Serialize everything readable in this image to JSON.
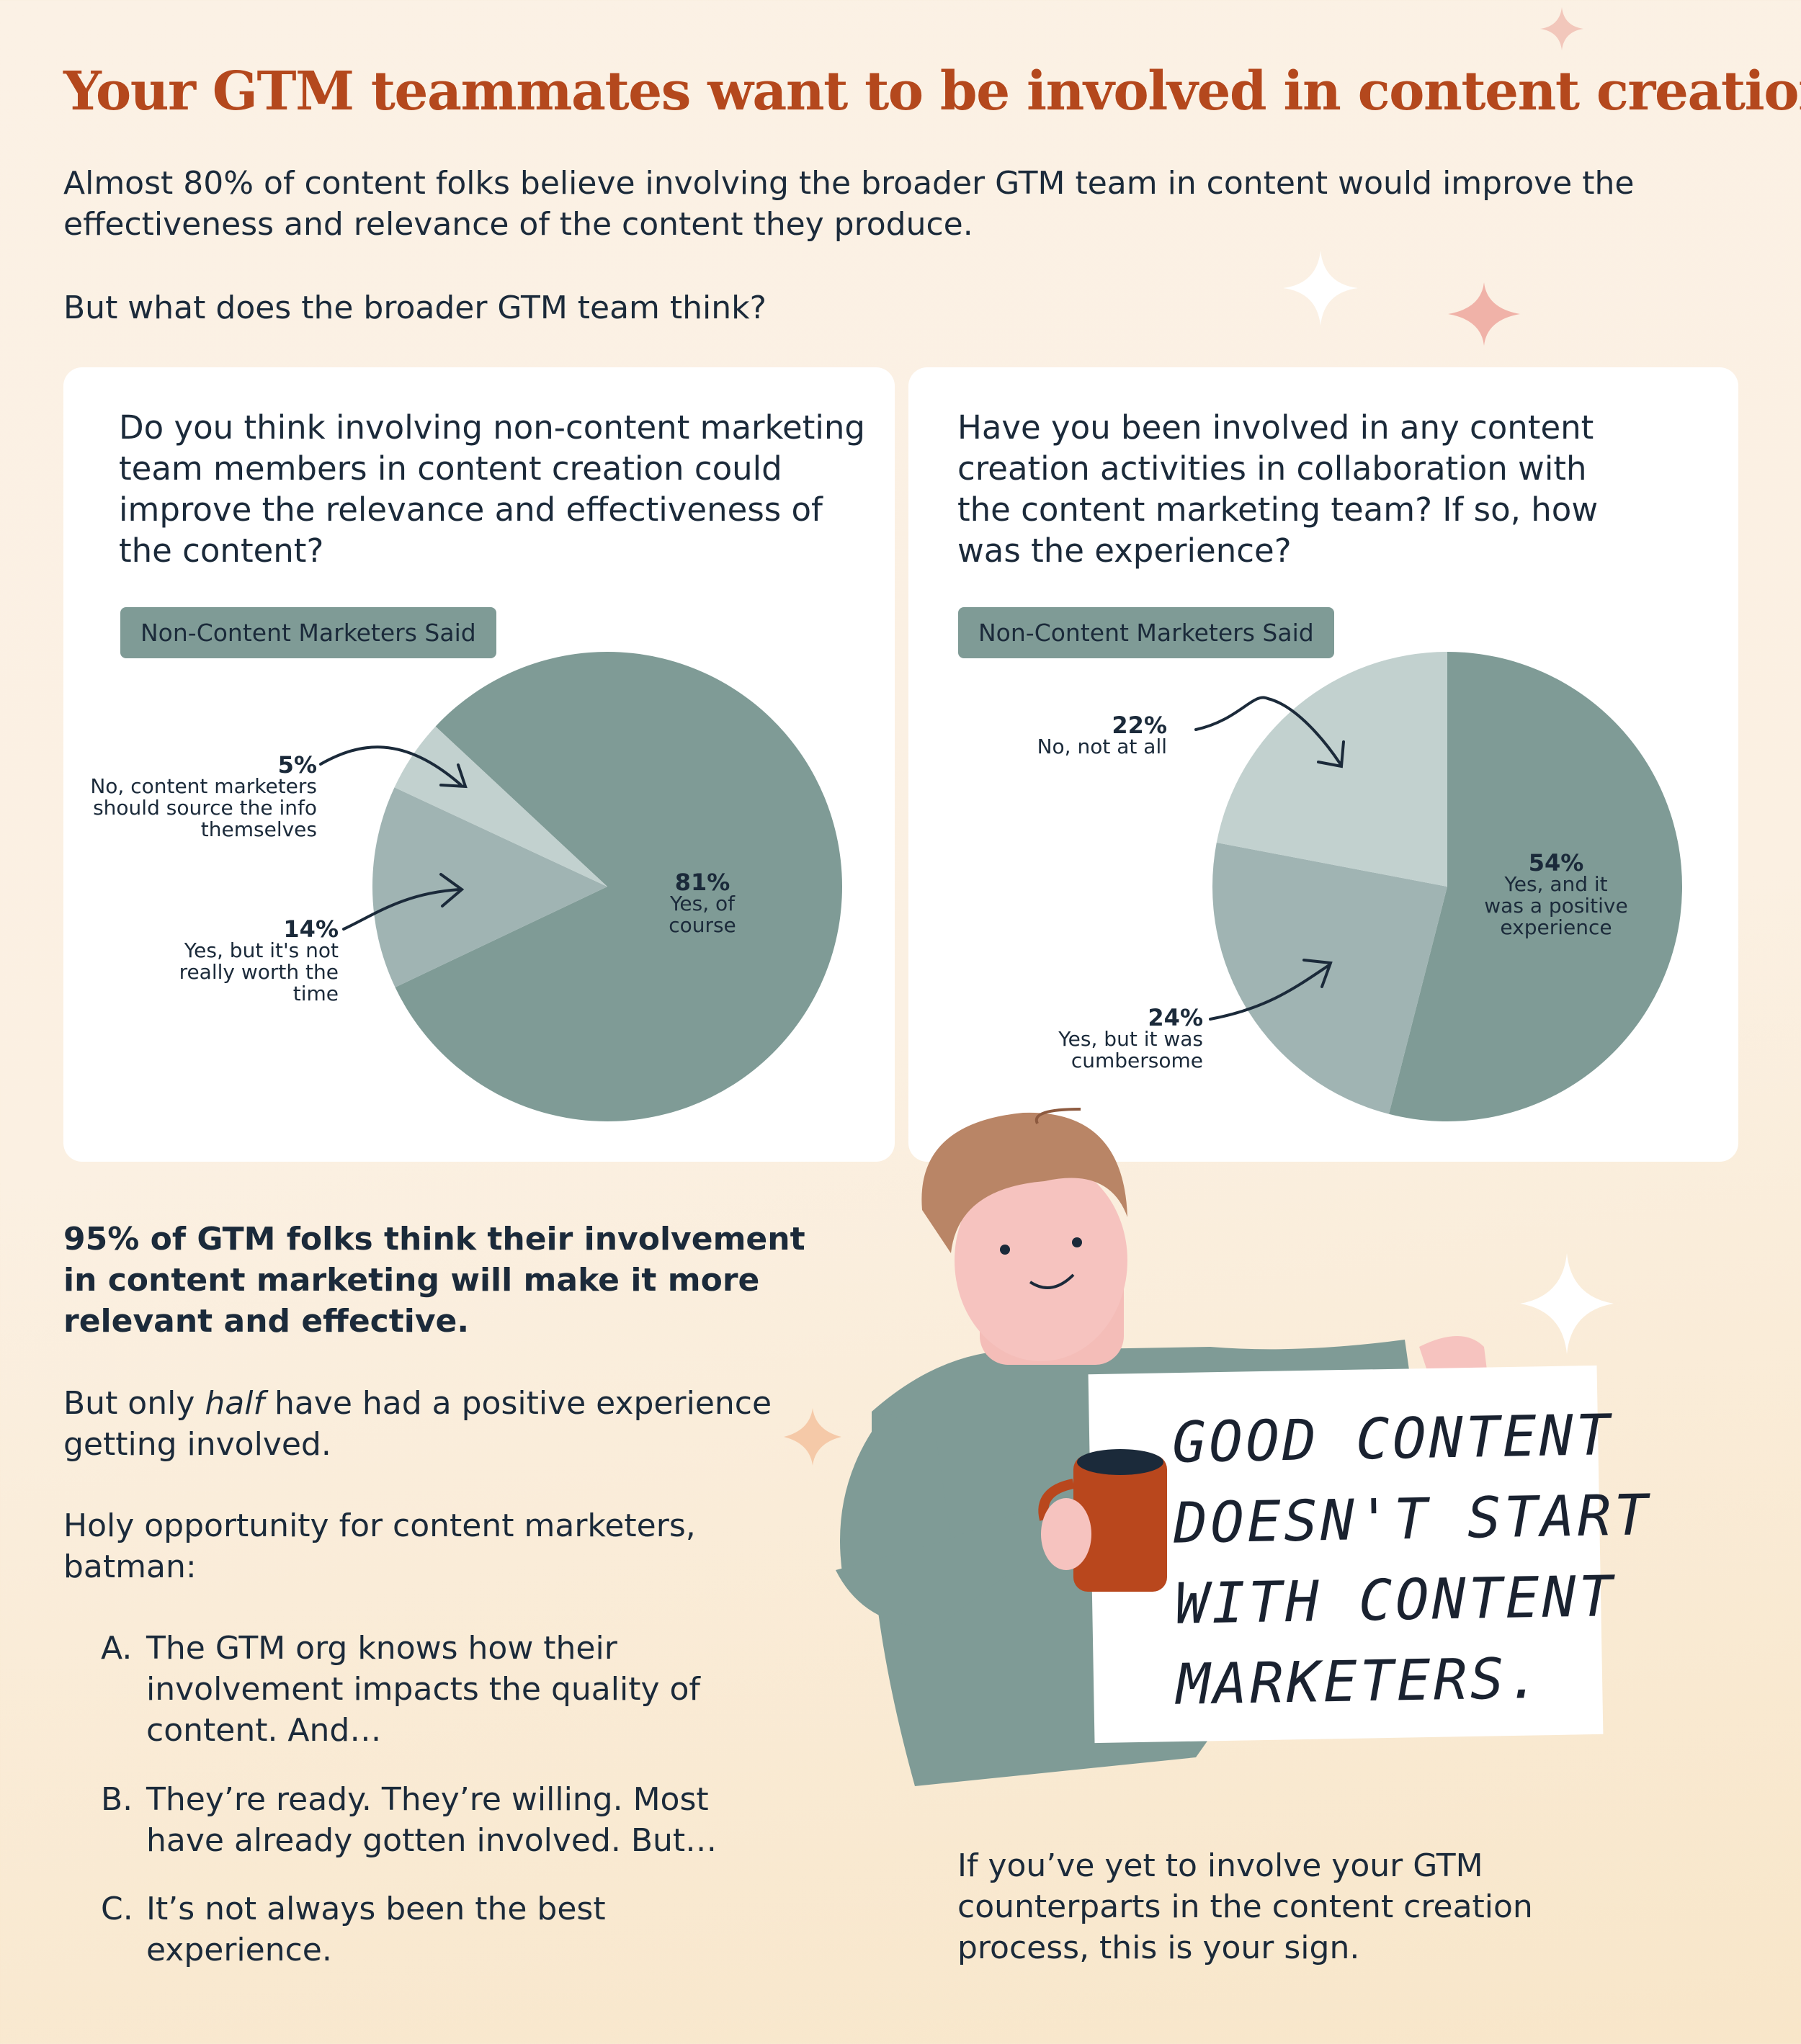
{
  "title": "Your GTM teammates want to be involved in content creation",
  "intro": "Almost 80% of content folks believe involving the broader GTM team in content would improve the effectiveness and relevance of the content they produce.",
  "question": "But what does the broader GTM team think?",
  "colors": {
    "title": "#b4481d",
    "dark": "#7f9b96",
    "mid": "#a0b4b3",
    "light": "#c2d1cf"
  },
  "cards": [
    {
      "question": "Do you think involving non-content marketing team members in content  creation could improve the relevance and effectiveness of the content?",
      "badge": "Non-Content Marketers Said"
    },
    {
      "question": "Have you been involved in any content creation activities in collaboration with the content marketing team? If so, how was the experience?",
      "badge": "Non-Content Marketers Said"
    }
  ],
  "chart_data": [
    {
      "type": "pie",
      "slices": [
        {
          "label": "Yes, of course",
          "value": 81,
          "display": "81%",
          "color": "#7f9b96"
        },
        {
          "label": "Yes, but it's not really worth the time",
          "value": 14,
          "display": "14%",
          "color": "#a0b4b3"
        },
        {
          "label": "No, content marketers should source the info themselves",
          "value": 5,
          "display": "5%",
          "color": "#c2d1cf"
        }
      ]
    },
    {
      "type": "pie",
      "slices": [
        {
          "label": "Yes, and it was a positive experience",
          "value": 54,
          "display": "54%",
          "color": "#7f9b96"
        },
        {
          "label": "Yes, but it was cumbersome",
          "value": 24,
          "display": "24%",
          "color": "#a0b4b3"
        },
        {
          "label": "No, not at all",
          "value": 22,
          "display": "22%",
          "color": "#c2d1cf"
        }
      ]
    }
  ],
  "bottom": {
    "headline": "95% of GTM folks think their involvement in content marketing will make it more relevant and effective.",
    "p1_pre": "But only ",
    "p1_em": "half",
    "p1_post": " have had a positive experience getting involved.",
    "p2": "Holy opportunity for content marketers, batman:",
    "list": [
      {
        "n": "A.",
        "t": "The GTM org knows how their involvement impacts the quality of content. And…"
      },
      {
        "n": "B.",
        "t": "They’re ready. They’re willing. Most have already gotten involved. But…"
      },
      {
        "n": "C.",
        "t": "It’s not always been the best experience."
      }
    ],
    "closing": "If you’ve yet to involve your GTM counterparts in the content creation process, this is your sign."
  },
  "sign": {
    "lines": [
      "GOOD CONTENT",
      "DOESN'T START",
      "WITH CONTENT",
      "MARKETERS."
    ]
  }
}
